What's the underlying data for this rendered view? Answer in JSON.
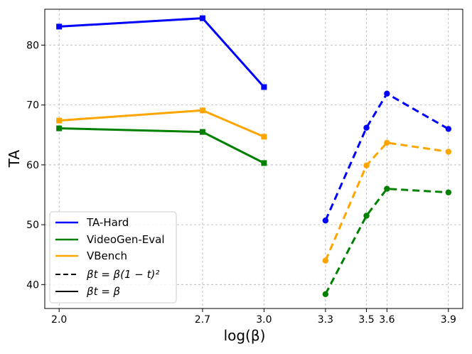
{
  "chart_data": {
    "type": "line",
    "title": "",
    "xlabel": "log(β)",
    "ylabel": "TA",
    "ylim": [
      36,
      86
    ],
    "xlim": [
      1.93,
      3.97
    ],
    "grid": true,
    "legend_position": "bottom-left",
    "x_ticks": [
      2.0,
      2.7,
      3.0,
      3.3,
      3.5,
      3.6,
      3.9
    ],
    "x_tick_labels": [
      "2.0",
      "2.7",
      "3.0",
      "3.3",
      "3.5",
      "3.6",
      "3.9"
    ],
    "y_ticks": [
      40,
      50,
      60,
      70,
      80
    ],
    "y_tick_labels": [
      "40",
      "50",
      "60",
      "70",
      "80"
    ],
    "series": [
      {
        "name": "TA-Hard",
        "color": "#0000ff",
        "schedule": "constant",
        "marker": "square",
        "x": [
          2.0,
          2.7,
          3.0
        ],
        "values": [
          83.1,
          84.5,
          73.0
        ]
      },
      {
        "name": "VideoGen-Eval",
        "color": "#008000",
        "schedule": "constant",
        "marker": "square",
        "x": [
          2.0,
          2.7,
          3.0
        ],
        "values": [
          66.1,
          65.5,
          60.3
        ]
      },
      {
        "name": "VBench",
        "color": "#ffa500",
        "schedule": "constant",
        "marker": "square",
        "x": [
          2.0,
          2.7,
          3.0
        ],
        "values": [
          67.4,
          69.1,
          64.7
        ]
      },
      {
        "name": "TA-Hard",
        "color": "#0000ff",
        "schedule": "quadratic",
        "marker": "circle",
        "x": [
          3.3,
          3.5,
          3.6,
          3.9
        ],
        "values": [
          50.7,
          66.2,
          71.9,
          66.0
        ]
      },
      {
        "name": "VideoGen-Eval",
        "color": "#008000",
        "schedule": "quadratic",
        "marker": "circle",
        "x": [
          3.3,
          3.5,
          3.6,
          3.9
        ],
        "values": [
          38.4,
          51.5,
          56.0,
          55.4
        ]
      },
      {
        "name": "VBench",
        "color": "#ffa500",
        "schedule": "quadratic",
        "marker": "circle",
        "x": [
          3.3,
          3.5,
          3.6,
          3.9
        ],
        "values": [
          44.0,
          59.9,
          63.7,
          62.2
        ]
      }
    ],
    "legend": [
      {
        "label": "TA-Hard",
        "color": "#0000ff",
        "style": "solid"
      },
      {
        "label": "VideoGen-Eval",
        "color": "#008000",
        "style": "solid"
      },
      {
        "label": "VBench",
        "color": "#ffa500",
        "style": "solid"
      },
      {
        "label": "βt = β(1 − t)²",
        "color": "#000000",
        "style": "dashed"
      },
      {
        "label": "βt = β",
        "color": "#000000",
        "style": "solid"
      }
    ]
  }
}
